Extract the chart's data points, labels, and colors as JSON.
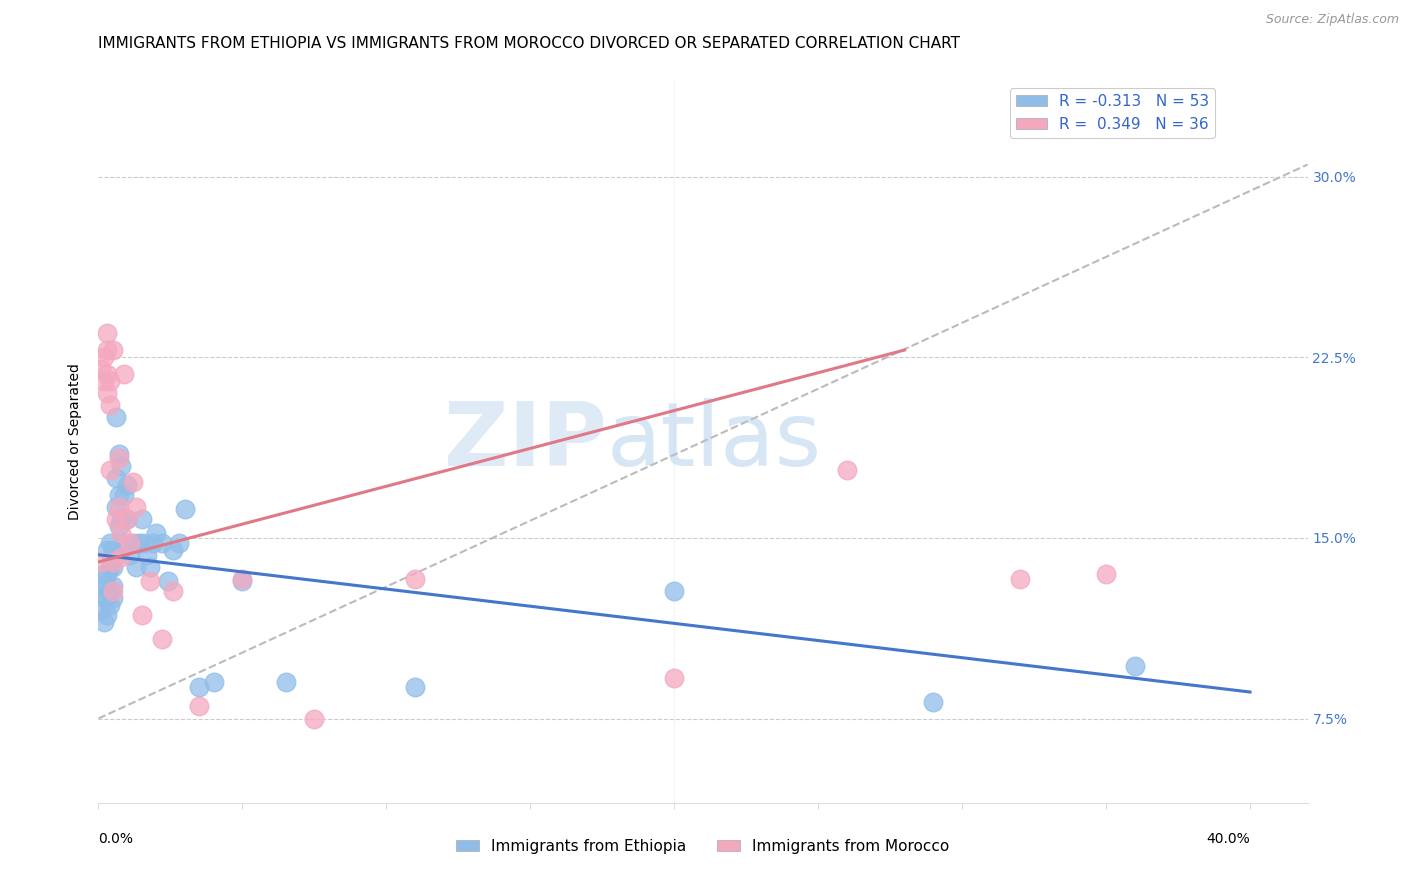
{
  "title": "IMMIGRANTS FROM ETHIOPIA VS IMMIGRANTS FROM MOROCCO DIVORCED OR SEPARATED CORRELATION CHART",
  "source": "Source: ZipAtlas.com",
  "ylabel": "Divorced or Separated",
  "x_label_bottom_left": "0.0%",
  "x_label_bottom_right": "40.0%",
  "y_ticks": [
    0.075,
    0.15,
    0.225,
    0.3
  ],
  "y_tick_labels": [
    "7.5%",
    "15.0%",
    "22.5%",
    "30.0%"
  ],
  "xlim": [
    0.0,
    0.42
  ],
  "ylim": [
    0.04,
    0.34
  ],
  "legend_r_ethiopia": "-0.313",
  "legend_n_ethiopia": "53",
  "legend_r_morocco": "0.349",
  "legend_n_morocco": "36",
  "color_ethiopia": "#90BDE8",
  "color_morocco": "#F4A8BE",
  "trendline_ethiopia_color": "#4477CC",
  "trendline_morocco_color": "#E07888",
  "trendline_dashed_color": "#BBBBBB",
  "background_color": "#FFFFFF",
  "ethiopia_x": [
    0.001,
    0.001,
    0.002,
    0.002,
    0.002,
    0.003,
    0.003,
    0.003,
    0.003,
    0.003,
    0.004,
    0.004,
    0.004,
    0.004,
    0.005,
    0.005,
    0.005,
    0.005,
    0.006,
    0.006,
    0.006,
    0.007,
    0.007,
    0.007,
    0.008,
    0.008,
    0.009,
    0.009,
    0.01,
    0.01,
    0.011,
    0.012,
    0.013,
    0.014,
    0.015,
    0.016,
    0.017,
    0.018,
    0.019,
    0.02,
    0.022,
    0.024,
    0.026,
    0.028,
    0.03,
    0.035,
    0.04,
    0.05,
    0.065,
    0.11,
    0.2,
    0.29,
    0.36
  ],
  "ethiopia_y": [
    0.13,
    0.12,
    0.135,
    0.125,
    0.115,
    0.145,
    0.135,
    0.13,
    0.125,
    0.118,
    0.148,
    0.138,
    0.128,
    0.122,
    0.145,
    0.138,
    0.13,
    0.125,
    0.2,
    0.175,
    0.163,
    0.185,
    0.168,
    0.155,
    0.18,
    0.158,
    0.168,
    0.148,
    0.158,
    0.172,
    0.143,
    0.148,
    0.138,
    0.148,
    0.158,
    0.148,
    0.143,
    0.138,
    0.148,
    0.152,
    0.148,
    0.132,
    0.145,
    0.148,
    0.162,
    0.088,
    0.09,
    0.132,
    0.09,
    0.088,
    0.128,
    0.082,
    0.097
  ],
  "morocco_x": [
    0.001,
    0.001,
    0.002,
    0.002,
    0.003,
    0.003,
    0.003,
    0.003,
    0.004,
    0.004,
    0.004,
    0.005,
    0.005,
    0.005,
    0.006,
    0.007,
    0.007,
    0.008,
    0.008,
    0.009,
    0.01,
    0.011,
    0.012,
    0.013,
    0.015,
    0.018,
    0.022,
    0.026,
    0.035,
    0.05,
    0.075,
    0.11,
    0.2,
    0.26,
    0.32,
    0.35
  ],
  "morocco_y": [
    0.14,
    0.22,
    0.215,
    0.225,
    0.235,
    0.218,
    0.228,
    0.21,
    0.215,
    0.205,
    0.178,
    0.228,
    0.14,
    0.128,
    0.158,
    0.163,
    0.183,
    0.152,
    0.142,
    0.218,
    0.158,
    0.148,
    0.173,
    0.163,
    0.118,
    0.132,
    0.108,
    0.128,
    0.08,
    0.133,
    0.075,
    0.133,
    0.092,
    0.178,
    0.133,
    0.135
  ],
  "trendline_ethiopia_x0": 0.0,
  "trendline_ethiopia_y0": 0.143,
  "trendline_ethiopia_x1": 0.4,
  "trendline_ethiopia_y1": 0.086,
  "trendline_morocco_x0": 0.0,
  "trendline_morocco_y0": 0.14,
  "trendline_morocco_x1": 0.28,
  "trendline_morocco_y1": 0.228,
  "dashed_line_x0": 0.0,
  "dashed_line_y0": 0.075,
  "dashed_line_x1": 0.42,
  "dashed_line_y1": 0.305,
  "watermark_zip": "ZIP",
  "watermark_atlas": "atlas",
  "title_fontsize": 11,
  "axis_label_fontsize": 10,
  "tick_fontsize": 10,
  "legend_fontsize": 11
}
